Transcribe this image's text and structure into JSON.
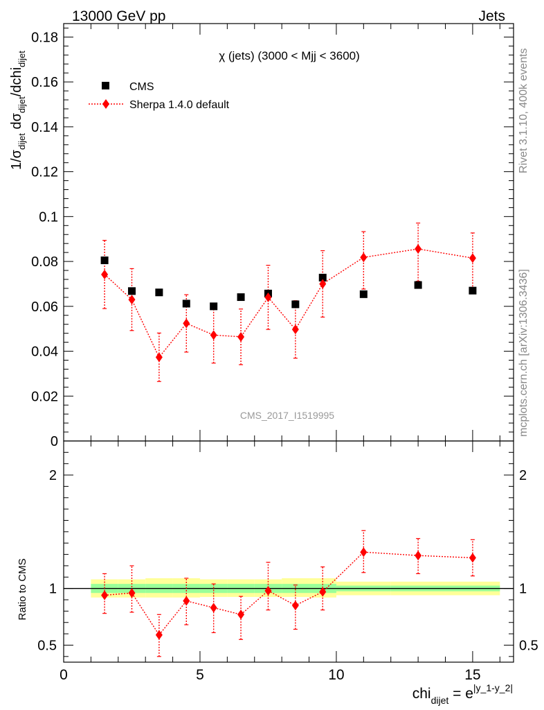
{
  "header": {
    "left": "13000 GeV pp",
    "right": "Jets"
  },
  "side_labels": {
    "rivet": "Rivet 3.1.10,  400k events",
    "mcplots": "mcplots.cern.ch [arXiv:1306.3436]"
  },
  "watermark": "CMS_2017_I1519995",
  "chart_data": [
    {
      "type": "scatter",
      "panel": "main",
      "title": "χ (jets) (3000 < Mjj < 3600)",
      "ylabel": "1/σdijet dσdijet/dchidijet",
      "xlabel": "chidijet = e^|y_1-y_2|",
      "xlim": [
        0,
        16.5
      ],
      "ylim": [
        0,
        0.186
      ],
      "yticks": [
        0,
        0.02,
        0.04,
        0.06,
        0.08,
        0.1,
        0.12,
        0.14,
        0.16,
        0.18
      ],
      "ytick_labels": [
        "0",
        "0.02",
        "0.04",
        "0.06",
        "0.08",
        "0.1",
        "0.12",
        "0.14",
        "0.16",
        "0.18"
      ],
      "legend_placement": "top-left",
      "series": [
        {
          "name": "CMS",
          "marker": "square",
          "color": "#000000",
          "x": [
            1.5,
            2.5,
            3.5,
            4.5,
            5.5,
            6.5,
            7.5,
            8.5,
            9.5,
            11,
            13,
            15
          ],
          "y": [
            0.0805,
            0.0668,
            0.0662,
            0.0612,
            0.06,
            0.0641,
            0.0657,
            0.0609,
            0.0728,
            0.0654,
            0.0695,
            0.067
          ]
        },
        {
          "name": "Sherpa 1.4.0 default",
          "marker": "diamond",
          "line": "dotted",
          "color": "#ff0000",
          "x": [
            1.5,
            2.5,
            3.5,
            4.5,
            5.5,
            6.5,
            7.5,
            8.5,
            9.5,
            11,
            13,
            15
          ],
          "y": [
            0.0742,
            0.063,
            0.0373,
            0.0524,
            0.0472,
            0.0464,
            0.064,
            0.0497,
            0.07,
            0.0818,
            0.0856,
            0.0815
          ],
          "err_lo": [
            0.0152,
            0.0138,
            0.0108,
            0.0128,
            0.0125,
            0.0124,
            0.0143,
            0.0128,
            0.0148,
            0.0141,
            0.0144,
            0.0139
          ],
          "err_hi": [
            0.0152,
            0.0138,
            0.0108,
            0.0128,
            0.0125,
            0.0124,
            0.0143,
            0.0128,
            0.0148,
            0.0115,
            0.0115,
            0.0112
          ]
        }
      ]
    },
    {
      "type": "scatter",
      "panel": "ratio",
      "ylabel": "Ratio to CMS",
      "xlabel": "chidijet = e^|y_1-y_2|",
      "xlim": [
        0,
        16.5
      ],
      "ylim": [
        0.35,
        2.3
      ],
      "xticks": [
        0,
        5,
        10,
        15
      ],
      "xtick_labels": [
        "0",
        "5",
        "10",
        "15"
      ],
      "yticks": [
        0.5,
        1,
        2
      ],
      "ytick_labels": [
        "0.5",
        "1",
        "2"
      ],
      "bands": {
        "x_edges": [
          1,
          2,
          3,
          4,
          5,
          6,
          7,
          8,
          9,
          10,
          12,
          14,
          16
        ],
        "inner_lo": [
          0.96,
          0.96,
          0.96,
          0.96,
          0.96,
          0.96,
          0.96,
          0.96,
          0.96,
          0.975,
          0.975,
          0.975
        ],
        "inner_hi": [
          1.04,
          1.04,
          1.04,
          1.04,
          1.04,
          1.04,
          1.04,
          1.04,
          1.04,
          1.025,
          1.025,
          1.025
        ],
        "outer_lo": [
          0.92,
          0.92,
          0.92,
          0.92,
          0.925,
          0.925,
          0.925,
          0.925,
          0.92,
          0.94,
          0.94,
          0.94
        ],
        "outer_hi": [
          1.08,
          1.08,
          1.09,
          1.09,
          1.08,
          1.08,
          1.08,
          1.09,
          1.09,
          1.06,
          1.06,
          1.06
        ],
        "inner_color": "#99ff99",
        "outer_color": "#ffff99"
      },
      "series": [
        {
          "name": "Sherpa 1.4.0 default",
          "color": "#ff0000",
          "x": [
            1.5,
            2.5,
            3.5,
            4.5,
            5.5,
            6.5,
            7.5,
            8.5,
            9.5,
            11,
            13,
            15
          ],
          "y": [
            0.94,
            0.96,
            0.59,
            0.89,
            0.83,
            0.77,
            0.98,
            0.85,
            0.97,
            1.32,
            1.29,
            1.27
          ],
          "err_lo": [
            0.16,
            0.17,
            0.19,
            0.21,
            0.22,
            0.22,
            0.17,
            0.21,
            0.16,
            0.18,
            0.16,
            0.16
          ],
          "err_hi": [
            0.19,
            0.24,
            0.18,
            0.2,
            0.21,
            0.16,
            0.25,
            0.18,
            0.22,
            0.19,
            0.15,
            0.16
          ]
        }
      ]
    }
  ]
}
